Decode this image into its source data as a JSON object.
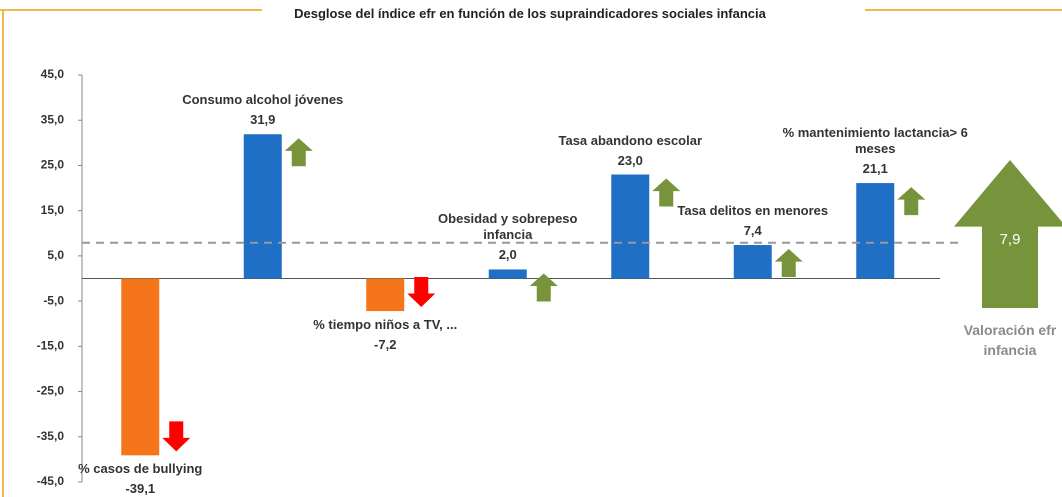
{
  "chart_data": {
    "type": "bar",
    "title": "Desglose del índice efr en función de los supraindicadores sociales infancia",
    "categories": [
      "% casos de bullying",
      "Consumo alcohol jóvenes",
      "% tiempo niños a TV, ...",
      "Obesidad y sobrepeso infancia",
      "Tasa abandono escolar",
      "Tasa delitos en menores",
      "% mantenimiento lactancia> 6 meses"
    ],
    "values": [
      -39.1,
      31.9,
      -7.2,
      2.0,
      23.0,
      7.4,
      21.1
    ],
    "value_labels": [
      "-39,1",
      "31,9",
      "-7,2",
      "2,0",
      "23,0",
      "7,4",
      "21,1"
    ],
    "colors": [
      "#f5761a",
      "#1f6fc5",
      "#f5761a",
      "#1f6fc5",
      "#1f6fc5",
      "#1f6fc5",
      "#1f6fc5"
    ],
    "ylim": [
      -45,
      45
    ],
    "yticks": [
      {
        "value": 45,
        "label": "45,0"
      },
      {
        "value": 35,
        "label": "35,0"
      },
      {
        "value": 25,
        "label": "25,0"
      },
      {
        "value": 15,
        "label": "15,0"
      },
      {
        "value": 5,
        "label": "5,0"
      },
      {
        "value": -5,
        "label": "-5,0"
      },
      {
        "value": -15,
        "label": "-15,0"
      },
      {
        "value": -25,
        "label": "-25,0"
      },
      {
        "value": -35,
        "label": "-35,0"
      },
      {
        "value": -45,
        "label": "-45,0"
      }
    ],
    "reference": {
      "value": 7.9,
      "label": "7,9",
      "name": "Valoración efr infancia",
      "color": "#77933c"
    },
    "arrow_up_color": "#77933c",
    "arrow_down_color": "#ff0000"
  }
}
